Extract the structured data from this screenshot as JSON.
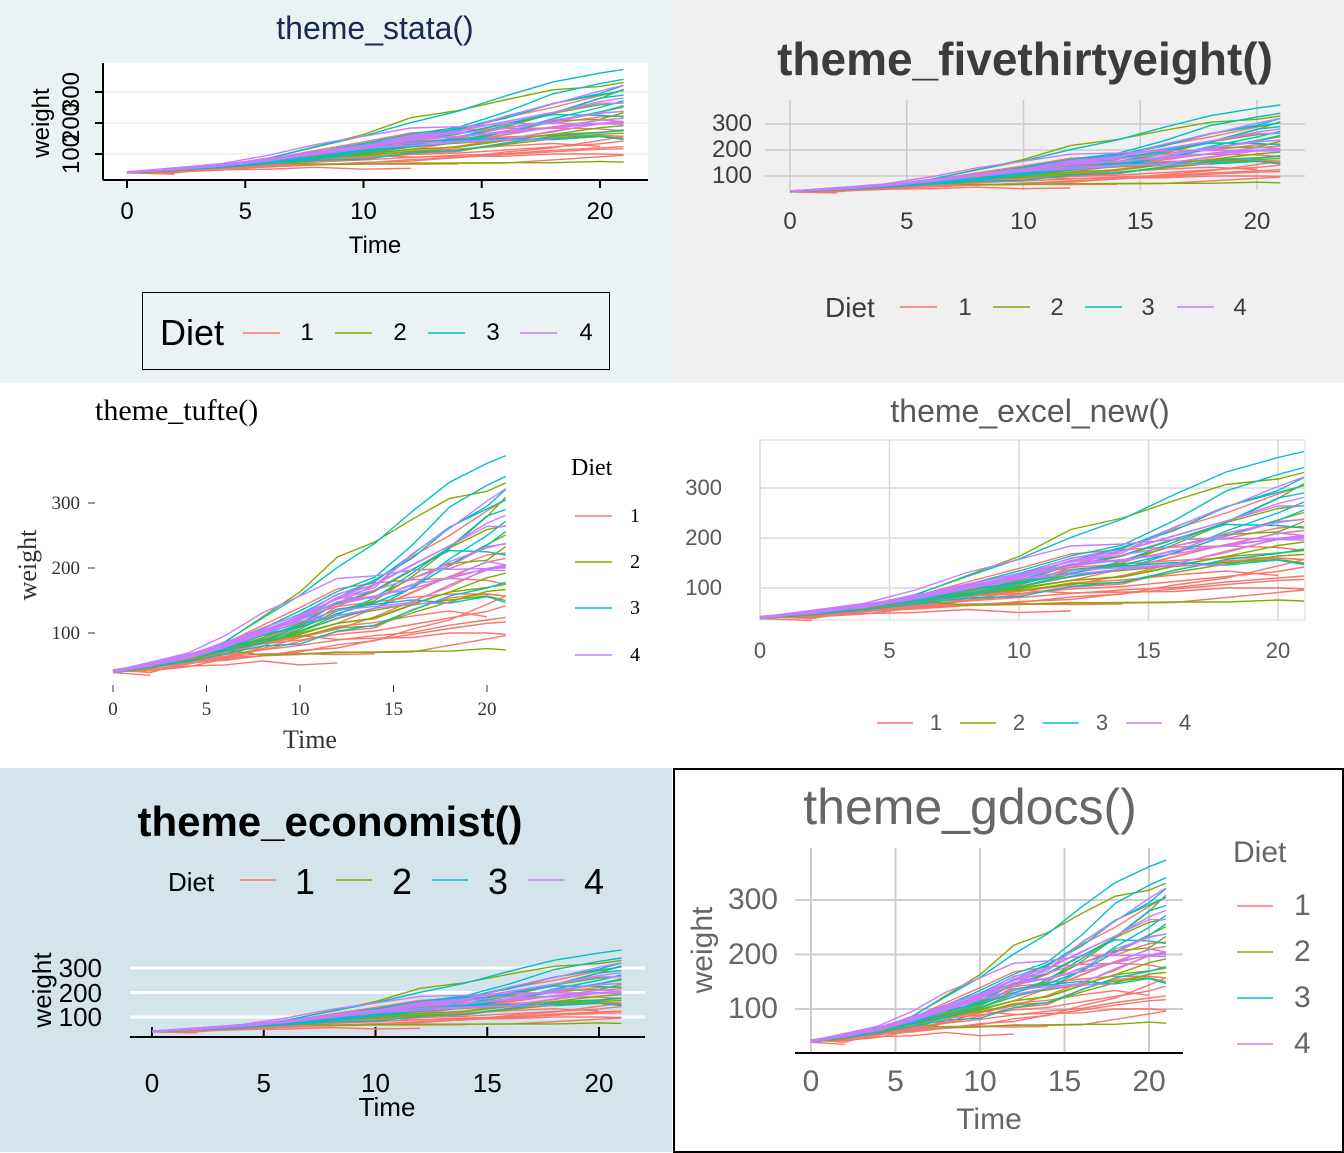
{
  "colors": {
    "1": "#F8766D",
    "2": "#7CAE00",
    "3": "#00BFC4",
    "4": "#C77CFF"
  },
  "chart_data": {
    "type": "line",
    "x": [
      0,
      2,
      4,
      6,
      8,
      10,
      12,
      14,
      16,
      18,
      20,
      21
    ],
    "series": [
      {
        "group": "1",
        "values": [
          42,
          51,
          59,
          64,
          76,
          93,
          106,
          125,
          149,
          171,
          199,
          205
        ]
      },
      {
        "group": "1",
        "values": [
          40,
          49,
          58,
          72,
          84,
          103,
          122,
          138,
          162,
          187,
          209,
          215
        ]
      },
      {
        "group": "1",
        "values": [
          43,
          39,
          55,
          67,
          84,
          99,
          115,
          138,
          163,
          187,
          198,
          202
        ]
      },
      {
        "group": "1",
        "values": [
          42,
          49,
          56,
          67,
          74,
          87,
          102,
          108,
          136,
          154,
          160,
          157
        ]
      },
      {
        "group": "1",
        "values": [
          41,
          42,
          48,
          60,
          79,
          106,
          141,
          164,
          197,
          199,
          220,
          223
        ]
      },
      {
        "group": "1",
        "values": [
          41,
          49,
          59,
          74,
          97,
          124,
          141,
          148,
          155,
          160,
          160,
          157
        ]
      },
      {
        "group": "1",
        "values": [
          41,
          49,
          57,
          71,
          89,
          112,
          146,
          174,
          218,
          250,
          288,
          305
        ]
      },
      {
        "group": "1",
        "values": [
          42,
          50,
          61,
          71,
          84,
          93,
          110,
          116,
          126,
          134,
          125,
          null
        ]
      },
      {
        "group": "1",
        "values": [
          42,
          51,
          59,
          68,
          85,
          96,
          90,
          92,
          93,
          100,
          100,
          98
        ]
      },
      {
        "group": "1",
        "values": [
          41,
          44,
          52,
          63,
          74,
          81,
          89,
          96,
          101,
          112,
          120,
          124
        ]
      },
      {
        "group": "1",
        "values": [
          43,
          51,
          63,
          84,
          112,
          139,
          168,
          177,
          182,
          184,
          181,
          175
        ]
      },
      {
        "group": "1",
        "values": [
          41,
          49,
          56,
          64,
          68,
          68,
          67,
          68,
          null,
          null,
          null,
          null
        ]
      },
      {
        "group": "1",
        "values": [
          41,
          45,
          49,
          51,
          57,
          51,
          54,
          null,
          null,
          null,
          null,
          null
        ]
      },
      {
        "group": "1",
        "values": [
          39,
          35,
          null,
          null,
          null,
          null,
          null,
          null,
          null,
          null,
          null,
          null
        ]
      },
      {
        "group": "1",
        "values": [
          41,
          48,
          53,
          60,
          65,
          67,
          71,
          70,
          71,
          81,
          91,
          96
        ]
      },
      {
        "group": "1",
        "values": [
          41,
          47,
          54,
          58,
          65,
          73,
          77,
          89,
          98,
          107,
          115,
          117
        ]
      },
      {
        "group": "1",
        "values": [
          43,
          48,
          55,
          62,
          65,
          71,
          82,
          88,
          106,
          120,
          144,
          157
        ]
      },
      {
        "group": "1",
        "values": [
          42,
          51,
          61,
          72,
          83,
          89,
          98,
          103,
          113,
          123,
          133,
          142
        ]
      },
      {
        "group": "2",
        "values": [
          40,
          50,
          62,
          86,
          125,
          163,
          217,
          240,
          275,
          307,
          318,
          331
        ]
      },
      {
        "group": "2",
        "values": [
          41,
          55,
          64,
          77,
          90,
          95,
          108,
          111,
          131,
          148,
          164,
          167
        ]
      },
      {
        "group": "2",
        "values": [
          43,
          52,
          61,
          73,
          90,
          103,
          127,
          135,
          145,
          163,
          170,
          175
        ]
      },
      {
        "group": "2",
        "values": [
          42,
          52,
          58,
          74,
          66,
          68,
          70,
          71,
          72,
          72,
          76,
          74
        ]
      },
      {
        "group": "2",
        "values": [
          40,
          49,
          62,
          78,
          102,
          124,
          146,
          164,
          197,
          231,
          259,
          265
        ]
      },
      {
        "group": "2",
        "values": [
          42,
          48,
          57,
          74,
          93,
          114,
          136,
          147,
          169,
          205,
          236,
          251
        ]
      },
      {
        "group": "2",
        "values": [
          39,
          46,
          58,
          73,
          87,
          100,
          115,
          123,
          144,
          163,
          185,
          192
        ]
      },
      {
        "group": "2",
        "values": [
          39,
          46,
          58,
          73,
          92,
          114,
          145,
          156,
          184,
          207,
          212,
          233
        ]
      },
      {
        "group": "2",
        "values": [
          39,
          48,
          59,
          74,
          87,
          106,
          134,
          150,
          187,
          230,
          279,
          309
        ]
      },
      {
        "group": "2",
        "values": [
          42,
          48,
          59,
          72,
          85,
          98,
          115,
          122,
          143,
          151,
          157,
          150
        ]
      },
      {
        "group": "3",
        "values": [
          42,
          53,
          62,
          73,
          85,
          102,
          123,
          138,
          170,
          204,
          235,
          256
        ]
      },
      {
        "group": "3",
        "values": [
          41,
          49,
          65,
          82,
          107,
          129,
          159,
          179,
          221,
          263,
          291,
          305
        ]
      },
      {
        "group": "3",
        "values": [
          39,
          50,
          63,
          77,
          96,
          111,
          137,
          144,
          151,
          146,
          156,
          147
        ]
      },
      {
        "group": "3",
        "values": [
          41,
          49,
          63,
          85,
          107,
          134,
          164,
          186,
          235,
          294,
          327,
          341
        ]
      },
      {
        "group": "3",
        "values": [
          41,
          53,
          64,
          87,
          123,
          158,
          201,
          238,
          287,
          332,
          361,
          373
        ]
      },
      {
        "group": "3",
        "values": [
          39,
          48,
          61,
          76,
          98,
          116,
          145,
          166,
          198,
          227,
          225,
          220
        ]
      },
      {
        "group": "3",
        "values": [
          41,
          48,
          56,
          68,
          80,
          83,
          103,
          112,
          135,
          157,
          169,
          178
        ]
      },
      {
        "group": "3",
        "values": [
          41,
          49,
          61,
          74,
          98,
          109,
          128,
          154,
          192,
          232,
          280,
          290
        ]
      },
      {
        "group": "3",
        "values": [
          42,
          50,
          61,
          78,
          89,
          109,
          130,
          146,
          170,
          214,
          250,
          272
        ]
      },
      {
        "group": "3",
        "values": [
          41,
          55,
          66,
          79,
          101,
          120,
          154,
          182,
          215,
          262,
          295,
          321
        ]
      },
      {
        "group": "4",
        "values": [
          42,
          51,
          66,
          85,
          103,
          124,
          155,
          153,
          175,
          184,
          199,
          204
        ]
      },
      {
        "group": "4",
        "values": [
          42,
          49,
          63,
          84,
          103,
          126,
          160,
          174,
          204,
          234,
          269,
          281
        ]
      },
      {
        "group": "4",
        "values": [
          42,
          55,
          69,
          96,
          131,
          157,
          184,
          188,
          197,
          198,
          199,
          200
        ]
      },
      {
        "group": "4",
        "values": [
          42,
          51,
          65,
          86,
          103,
          118,
          127,
          138,
          145,
          146,
          null,
          null
        ]
      },
      {
        "group": "4",
        "values": [
          41,
          50,
          61,
          78,
          98,
          117,
          135,
          141,
          147,
          174,
          197,
          196
        ]
      },
      {
        "group": "4",
        "values": [
          40,
          52,
          62,
          82,
          101,
          120,
          144,
          156,
          173,
          210,
          231,
          238
        ]
      },
      {
        "group": "4",
        "values": [
          41,
          53,
          66,
          79,
          100,
          123,
          148,
          157,
          168,
          185,
          210,
          205
        ]
      },
      {
        "group": "4",
        "values": [
          39,
          50,
          62,
          80,
          104,
          125,
          154,
          170,
          222,
          261,
          303,
          322
        ]
      },
      {
        "group": "4",
        "values": [
          40,
          53,
          64,
          85,
          108,
          128,
          152,
          166,
          184,
          203,
          233,
          237
        ]
      },
      {
        "group": "4",
        "values": [
          41,
          54,
          67,
          84,
          105,
          122,
          155,
          175,
          205,
          234,
          264,
          264
        ]
      }
    ],
    "charts": [
      {
        "id": "stata",
        "title": "theme_stata()",
        "xlabel": "Time",
        "ylabel": "weight",
        "x_ticks": [
          "0",
          "5",
          "10",
          "15",
          "20"
        ],
        "y_ticks": [
          "100",
          "200",
          "300"
        ],
        "legend": {
          "title": "Diet",
          "entries": [
            "1",
            "2",
            "3",
            "4"
          ],
          "placement": "bottom"
        },
        "grid": "horizontal"
      },
      {
        "id": "fte",
        "title": "theme_fivethirtyeight()",
        "xlabel": "",
        "ylabel": "",
        "x_ticks": [
          "0",
          "5",
          "10",
          "15",
          "20"
        ],
        "y_ticks": [
          "100",
          "200",
          "300"
        ],
        "legend": {
          "title": "Diet",
          "entries": [
            "1",
            "2",
            "3",
            "4"
          ],
          "placement": "bottom"
        },
        "grid": "both"
      },
      {
        "id": "tufte",
        "title": "theme_tufte()",
        "xlabel": "Time",
        "ylabel": "weight",
        "x_ticks": [
          "0",
          "5",
          "10",
          "15",
          "20"
        ],
        "y_ticks": [
          "100",
          "200",
          "300"
        ],
        "legend": {
          "title": "Diet",
          "entries": [
            "1",
            "2",
            "3",
            "4"
          ],
          "placement": "right"
        },
        "grid": "none"
      },
      {
        "id": "excel",
        "title": "theme_excel_new()",
        "xlabel": "",
        "ylabel": "",
        "x_ticks": [
          "0",
          "5",
          "10",
          "15",
          "20"
        ],
        "y_ticks": [
          "100",
          "200",
          "300"
        ],
        "legend": {
          "title": "",
          "entries": [
            "1",
            "2",
            "3",
            "4"
          ],
          "placement": "bottom"
        },
        "grid": "both"
      },
      {
        "id": "econ",
        "title": "theme_economist()",
        "xlabel": "Time",
        "ylabel": "weight",
        "x_ticks": [
          "0",
          "5",
          "10",
          "15",
          "20"
        ],
        "y_ticks": [
          "100",
          "200",
          "300"
        ],
        "legend": {
          "title": "Diet",
          "entries": [
            "1",
            "2",
            "3",
            "4"
          ],
          "placement": "top"
        },
        "grid": "horizontal"
      },
      {
        "id": "gdocs",
        "title": "theme_gdocs()",
        "xlabel": "Time",
        "ylabel": "weight",
        "x_ticks": [
          "0",
          "5",
          "10",
          "15",
          "20"
        ],
        "y_ticks": [
          "100",
          "200",
          "300"
        ],
        "legend": {
          "title": "Diet",
          "entries": [
            "1",
            "2",
            "3",
            "4"
          ],
          "placement": "right"
        },
        "grid": "both"
      }
    ]
  }
}
